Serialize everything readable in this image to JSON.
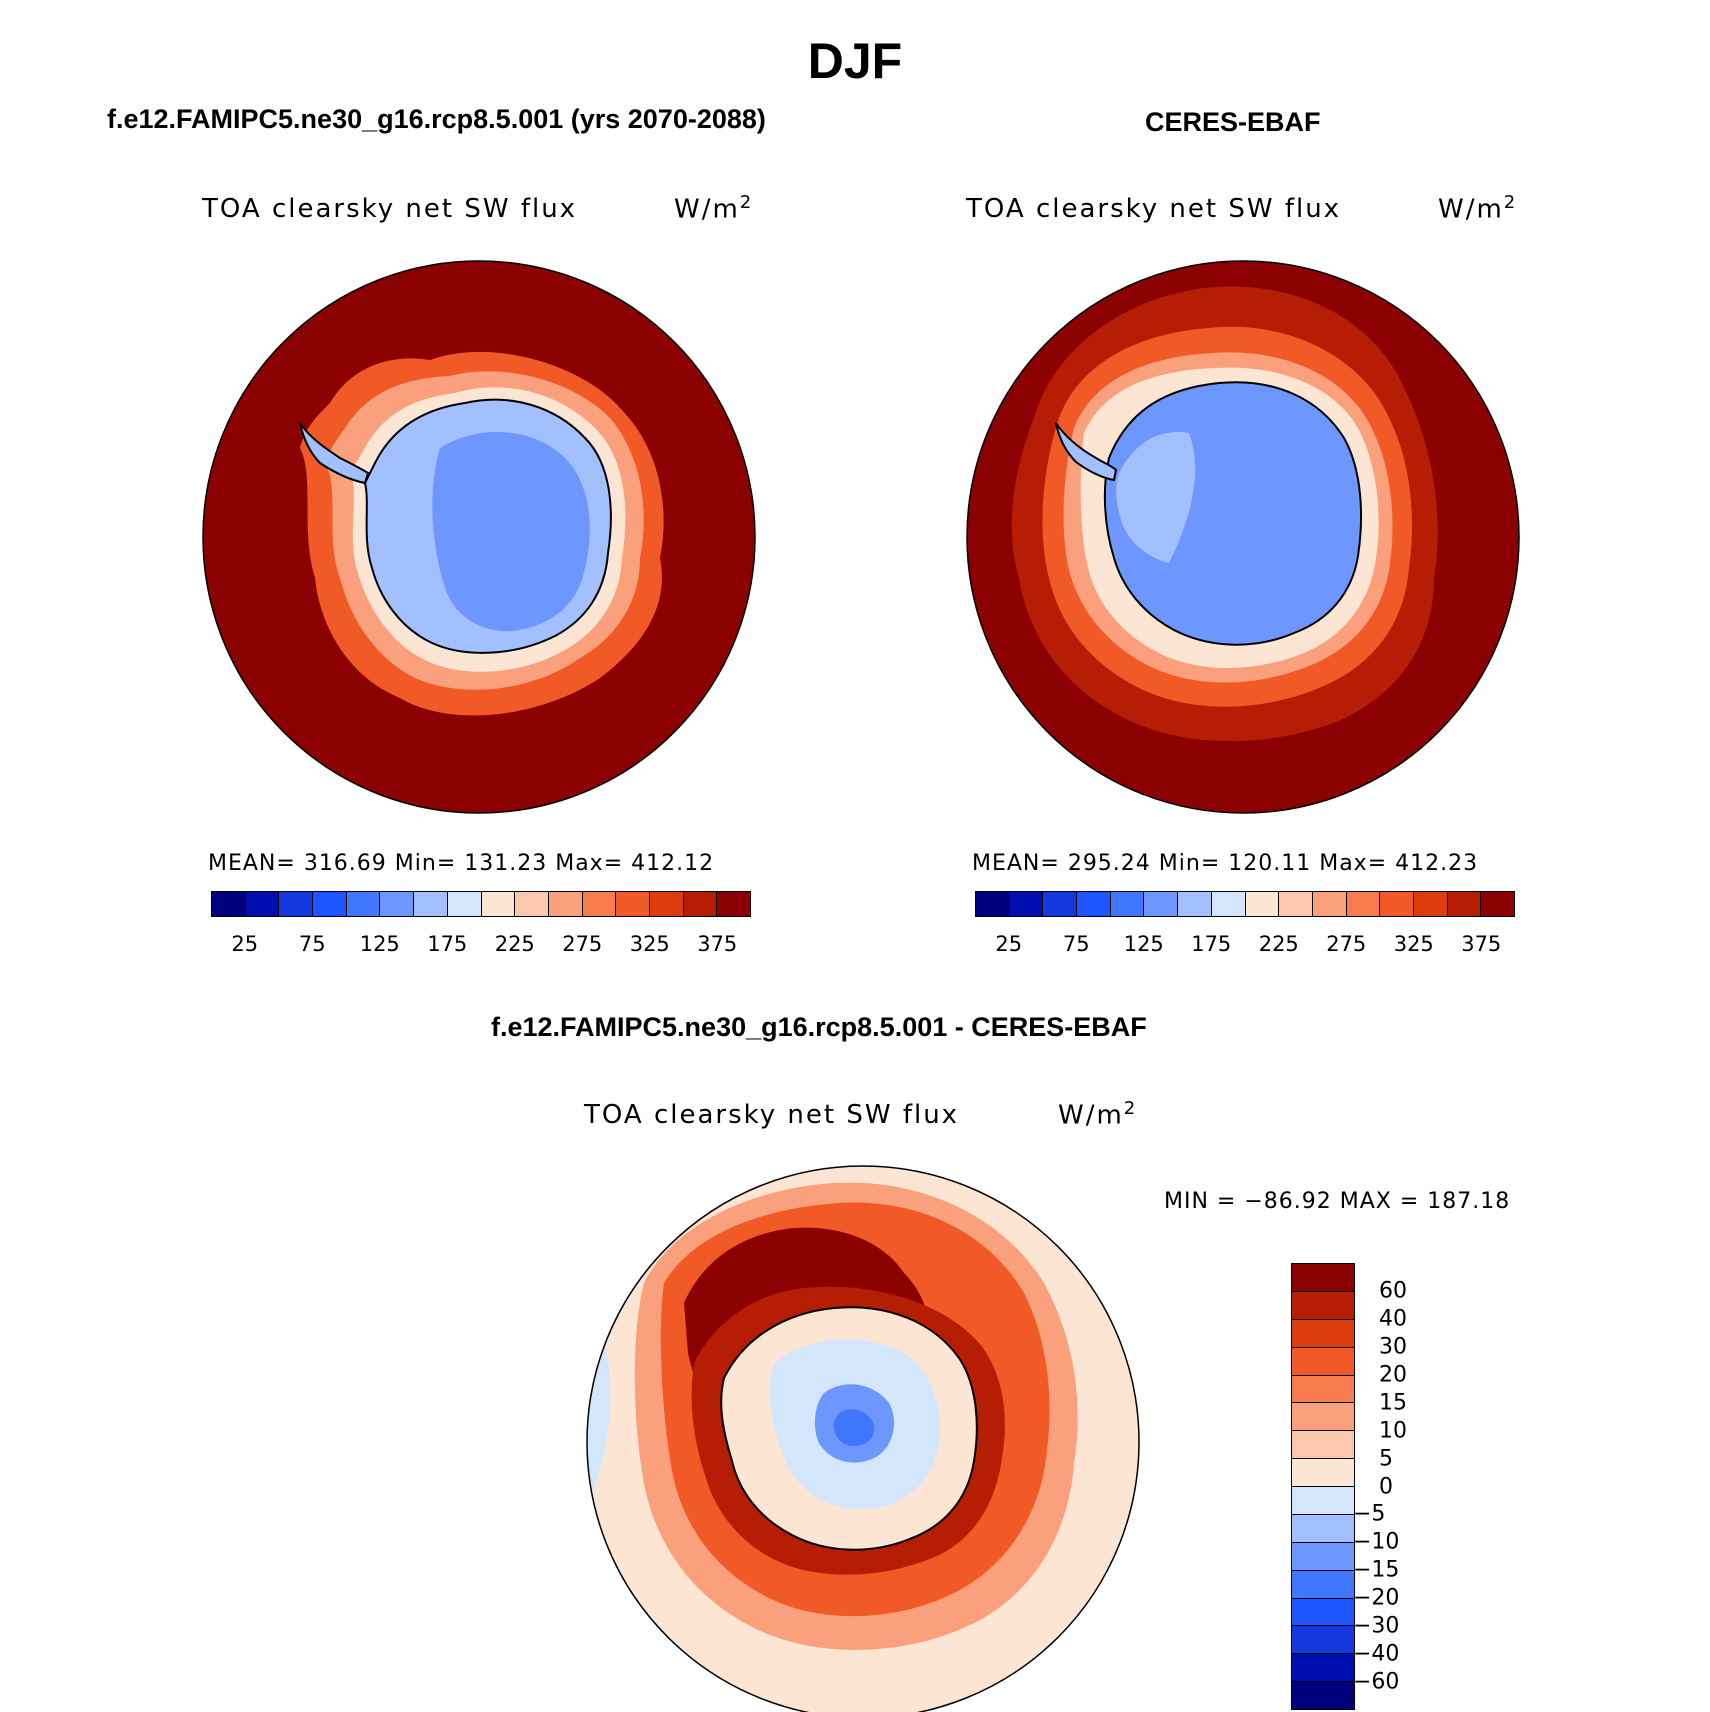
{
  "figure": {
    "title": "DJF"
  },
  "panels": {
    "model": {
      "title": "f.e12.FAMIPC5.ne30_g16.rcp8.5.001 (yrs 2070-2088)",
      "subtitle": "TOA clearsky net SW flux",
      "units": "W/m",
      "units_sup": "2",
      "stats": "MEAN= 316.69   Min= 131.23   Max= 412.12"
    },
    "obs": {
      "title": "CERES-EBAF",
      "subtitle": "TOA clearsky net SW flux",
      "units": "W/m",
      "units_sup": "2",
      "stats": "MEAN= 295.24   Min= 120.11   Max= 412.23"
    },
    "diff": {
      "title": "f.e12.FAMIPC5.ne30_g16.rcp8.5.001 - CERES-EBAF",
      "subtitle": "TOA clearsky net SW flux",
      "units": "W/m",
      "units_sup": "2",
      "stats": "MIN = −86.92 MAX = 187.18"
    }
  },
  "colorbar_abs": {
    "colors": [
      "#00007f",
      "#0010b0",
      "#1437e0",
      "#1f55ff",
      "#3f77ff",
      "#6d97ff",
      "#a2bfff",
      "#d3e6fb",
      "#fde5d4",
      "#fcc8ad",
      "#fba07d",
      "#f77b4d",
      "#f15a26",
      "#dc3c0e",
      "#b51d04",
      "#8b0000"
    ],
    "labels": [
      "25",
      "75",
      "125",
      "175",
      "225",
      "275",
      "325",
      "375"
    ]
  },
  "colorbar_diff": {
    "colors": [
      "#8b0000",
      "#b51d04",
      "#dc3c0e",
      "#f15a26",
      "#f77b4d",
      "#fba07d",
      "#fcc8ad",
      "#fde5d4",
      "#d3e6fb",
      "#a2bfff",
      "#6d97ff",
      "#3f77ff",
      "#1f55ff",
      "#1437e0",
      "#0010b0",
      "#00007f"
    ],
    "labels": [
      "60",
      "40",
      "30",
      "20",
      "15",
      "10",
      "5",
      "0",
      "−5",
      "−10",
      "−15",
      "−20",
      "−30",
      "−40",
      "−60"
    ]
  },
  "map_colors": {
    "ocean_high": "#8b0000",
    "ocean_mid": "#b51d04",
    "ring_orange": "#f15a26",
    "ring_light": "#fba07d",
    "ring_pale": "#fde5d4",
    "ice_light": "#a2bfff",
    "ice_mid": "#6d97ff",
    "diff_bg": "#fde5d4",
    "diff_blue": "#d3e6fb"
  }
}
